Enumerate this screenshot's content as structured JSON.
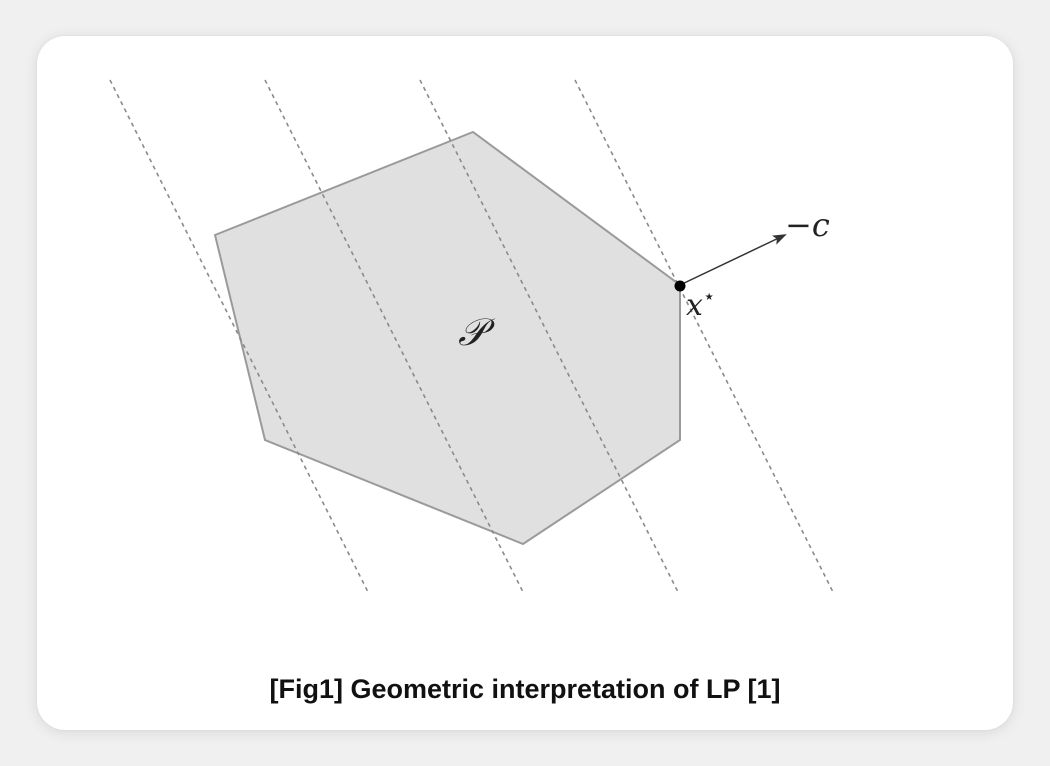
{
  "figure": {
    "caption": "[Fig1] Geometric interpretation of LP [1]",
    "polytope_label": "𝒫",
    "optimum_label": "x",
    "optimum_superscript": "⋆",
    "direction_label": "−c"
  },
  "colors": {
    "polytope_fill": "#e0e0e0",
    "polytope_stroke": "#9a9a9a",
    "level_lines": "#8a8a8a",
    "arrow": "#333333",
    "optimum_point": "#000000"
  }
}
